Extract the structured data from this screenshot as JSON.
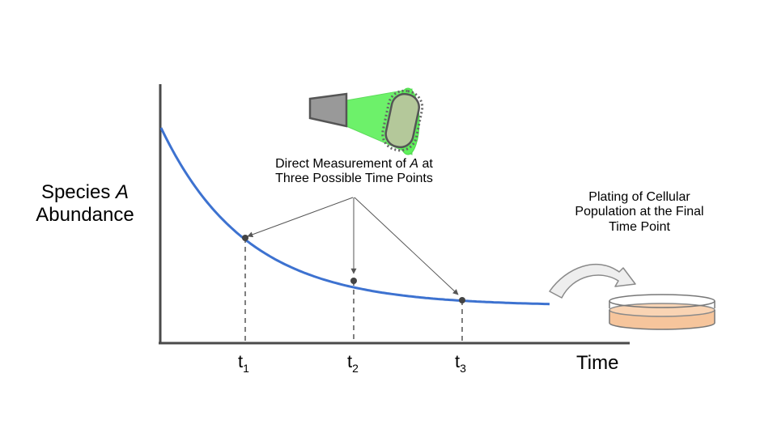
{
  "y_axis_label": {
    "line1_prefix": "Species ",
    "line1_var": "A",
    "line2": "Abundance"
  },
  "x_axis_label": "Time",
  "measurement_label": {
    "line1_prefix": "Direct Measurement of ",
    "line1_var": "A",
    "line1_suffix": " at",
    "line2": "Three Possible Time Points"
  },
  "plating_label": {
    "line1": "Plating of Cellular",
    "line2": "Population at the Final",
    "line3": "Time Point"
  },
  "time_points": [
    {
      "base": "t",
      "sub": "1"
    },
    {
      "base": "t",
      "sub": "2"
    },
    {
      "base": "t",
      "sub": "3"
    }
  ],
  "icons": [
    "camera-icon",
    "cell-icon",
    "curved-arrow-icon",
    "petri-dish-icon"
  ],
  "colors": {
    "curve": "#3d72d0",
    "axis": "#4a4a4a",
    "light_cone": "#5ef05a",
    "cell_fill": "#b4c89a",
    "petri_agar": "#f6c59c",
    "camera": "#999999",
    "arrow_fill": "#eeeeee"
  }
}
